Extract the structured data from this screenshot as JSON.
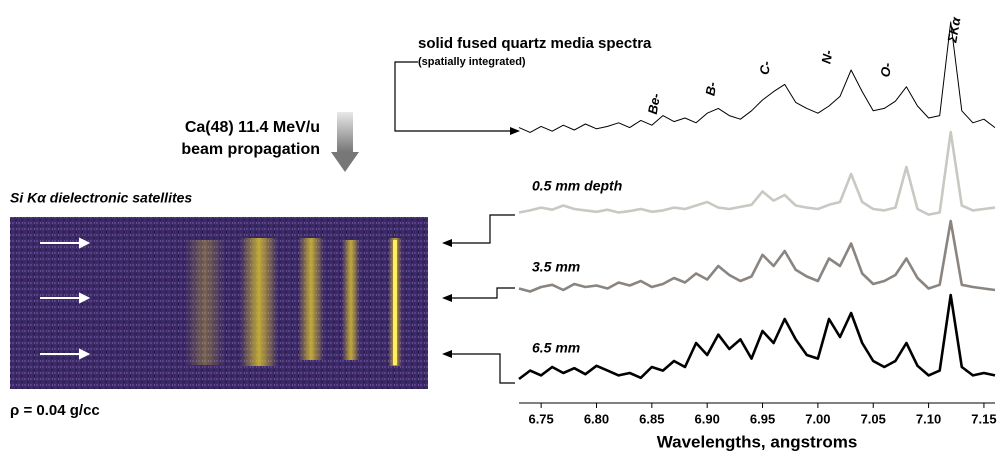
{
  "chart_data": {
    "type": "line",
    "xlabel": "Wavelengths, angstroms",
    "xlim": [
      6.73,
      7.16
    ],
    "xticks": [
      6.75,
      {
        "value": 6.8,
        "label": "6.80"
      },
      6.85,
      {
        "value": 6.9,
        "label": "6.90"
      },
      6.95,
      {
        "value": 7.0,
        "label": "7.00"
      },
      7.05,
      {
        "value": 7.1,
        "label": "7.10"
      },
      7.15
    ],
    "x": [
      6.73,
      6.74,
      6.75,
      6.76,
      6.77,
      6.78,
      6.79,
      6.8,
      6.81,
      6.82,
      6.83,
      6.84,
      6.85,
      6.86,
      6.87,
      6.88,
      6.89,
      6.9,
      6.91,
      6.92,
      6.93,
      6.94,
      6.95,
      6.96,
      6.97,
      6.98,
      6.99,
      7.0,
      7.01,
      7.02,
      7.03,
      7.04,
      7.05,
      7.06,
      7.07,
      7.08,
      7.09,
      7.1,
      7.11,
      7.12,
      7.13,
      7.14,
      7.15,
      7.16
    ],
    "series": [
      {
        "name": "solid fused quartz media spectra",
        "color": "#000000",
        "values": [
          1.2,
          0.8,
          1.3,
          0.9,
          1.4,
          1.0,
          1.5,
          1.1,
          1.3,
          1.6,
          1.2,
          1.8,
          1.4,
          2.2,
          1.7,
          2.0,
          1.6,
          2.4,
          2.8,
          2.2,
          1.9,
          2.6,
          3.5,
          4.2,
          4.8,
          3.3,
          2.8,
          2.4,
          3.0,
          3.8,
          6.0,
          4.2,
          2.6,
          2.8,
          3.4,
          4.6,
          3.0,
          2.0,
          2.2,
          10,
          2.6,
          1.6,
          1.9,
          1.2
        ]
      },
      {
        "name": "0.5 mm depth",
        "color": "#c9c8c2",
        "values": [
          0.5,
          0.8,
          1.2,
          0.9,
          1.5,
          1.0,
          0.8,
          0.6,
          0.9,
          0.5,
          0.7,
          1.0,
          0.6,
          0.8,
          1.2,
          1.0,
          1.5,
          2.0,
          1.2,
          1.0,
          1.3,
          1.6,
          3.5,
          2.2,
          3.0,
          1.5,
          1.2,
          1.0,
          1.6,
          2.0,
          6.0,
          2.0,
          1.0,
          0.8,
          1.2,
          7.0,
          1.0,
          0.2,
          0.5,
          12,
          1.5,
          0.8,
          1.0,
          1.2
        ]
      },
      {
        "name": "3.5 mm",
        "color": "#8a8580",
        "values": [
          1.0,
          0.6,
          1.2,
          1.5,
          0.8,
          1.6,
          1.2,
          1.4,
          1.0,
          1.8,
          1.4,
          2.0,
          1.2,
          1.6,
          2.4,
          1.8,
          3.0,
          2.2,
          4.0,
          2.8,
          2.0,
          2.6,
          5.5,
          4.0,
          6.0,
          3.5,
          2.6,
          2.0,
          5.0,
          4.0,
          7.0,
          3.0,
          1.6,
          2.0,
          2.8,
          5.0,
          2.4,
          1.0,
          1.5,
          10,
          1.5,
          1.2,
          1.0,
          0.8
        ]
      },
      {
        "name": "6.5 mm",
        "color": "#000000",
        "values": [
          0.5,
          1.2,
          0.8,
          1.5,
          1.0,
          1.4,
          0.9,
          1.6,
          1.2,
          0.8,
          1.0,
          0.6,
          1.5,
          1.2,
          2.0,
          1.5,
          3.5,
          2.5,
          4.2,
          3.0,
          3.8,
          2.2,
          4.5,
          3.5,
          5.5,
          3.8,
          2.5,
          2.2,
          5.5,
          4.0,
          6.0,
          3.5,
          2.0,
          1.5,
          2.0,
          3.5,
          1.6,
          0.8,
          1.2,
          7.5,
          1.5,
          0.8,
          1.0,
          0.8
        ]
      }
    ],
    "peak_labels": [
      "Be-",
      "B-",
      "C-",
      "N-",
      "O-",
      "ΣKα"
    ],
    "annotations": [
      "(spatially integrated)",
      "Ca(48) 11.4 MeV/u",
      "beam propagation",
      "Si Kα dielectronic satellites",
      "ρ = 0.04 g/cc"
    ]
  }
}
